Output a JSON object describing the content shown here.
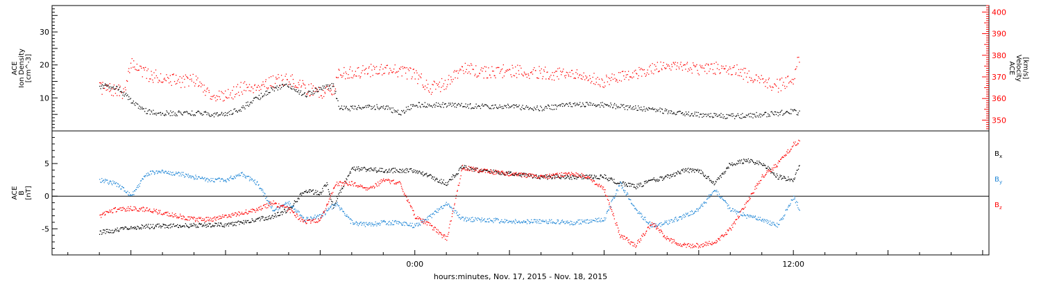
{
  "chart_data": [
    {
      "type": "scatter",
      "panel": "top",
      "ylabel_lines": [
        "ACE",
        "Ion Density",
        "[cm^-3]"
      ],
      "y2label_lines": [
        "ACE",
        "Velocity",
        "[km/s]"
      ],
      "ylim": [
        0,
        38
      ],
      "y2lim": [
        345,
        403
      ],
      "yticks": [
        10,
        20,
        30
      ],
      "y2ticks": [
        350,
        360,
        370,
        380,
        390,
        400
      ],
      "colors": {
        "density": "#000000",
        "velocity": "#ff0000"
      },
      "series": [
        {
          "name": "Ion Density",
          "axis": "left",
          "x": [
            -10.0,
            -9.8,
            -9.6,
            -9.4,
            -9.0,
            -8.5,
            -8.0,
            -7.0,
            -6.0,
            -5.5,
            -5.0,
            -4.5,
            -4.0,
            -3.5,
            -3.0,
            -2.6,
            -2.4,
            -2.0,
            -1.0,
            -0.5,
            0.0,
            1.0,
            2.0,
            3.0,
            4.0,
            5.0,
            6.0,
            7.0,
            8.0,
            9.0,
            10.0,
            11.0,
            12.0,
            12.2
          ],
          "y": [
            13,
            14,
            13.5,
            13,
            9,
            6,
            5.5,
            5.5,
            5,
            7,
            10,
            13,
            14,
            11,
            13,
            14,
            7,
            7,
            7.5,
            5.5,
            8,
            8,
            7.5,
            7.5,
            7,
            8,
            8,
            7,
            6,
            5,
            4.5,
            5,
            6,
            5.5
          ]
        },
        {
          "name": "Velocity",
          "axis": "right",
          "x": [
            -10.0,
            -9.6,
            -9.2,
            -9.0,
            -8.5,
            -8.0,
            -7.5,
            -7.0,
            -6.5,
            -6.0,
            -5.5,
            -5.0,
            -4.5,
            -4.0,
            -3.5,
            -3.0,
            -2.6,
            -2.4,
            -2.0,
            -1.0,
            -0.5,
            0.0,
            0.5,
            1.0,
            1.5,
            2.0,
            3.0,
            4.0,
            5.0,
            6.0,
            7.0,
            8.0,
            9.0,
            10.0,
            11.0,
            11.5,
            12.0,
            12.2
          ],
          "y": [
            365,
            364,
            363,
            377,
            371,
            370,
            368,
            369,
            362,
            361,
            365,
            366,
            368,
            369,
            365,
            363,
            364,
            372,
            372,
            374,
            373,
            371,
            365,
            367,
            375,
            372,
            373,
            372,
            371,
            368,
            372,
            376,
            374,
            374,
            368,
            366,
            370,
            381
          ]
        }
      ]
    },
    {
      "type": "scatter",
      "panel": "bottom",
      "ylabel_lines": [
        "ACE",
        "B",
        "[nT]"
      ],
      "ylim": [
        -9,
        10
      ],
      "yticks": [
        -5,
        0,
        5
      ],
      "zero_line": true,
      "xlim": [
        -11.5,
        18.2
      ],
      "xticks": [
        0,
        12
      ],
      "xtick_labels": [
        "0:00",
        "12:00"
      ],
      "xlabel": "hours:minutes, Nov. 17, 2015 - Nov. 18, 2015",
      "colors": {
        "Bx": "#000000",
        "By": "#1f86d6",
        "Bz": "#ff0000"
      },
      "series": [
        {
          "name": "Bx",
          "x": [
            -10.0,
            -9.5,
            -9.0,
            -8.5,
            -8.0,
            -7.0,
            -6.0,
            -5.5,
            -5.0,
            -4.5,
            -4.0,
            -3.5,
            -3.0,
            -2.8,
            -2.6,
            -2.5,
            -2.0,
            -1.0,
            0.0,
            0.5,
            1.0,
            1.5,
            2.0,
            3.0,
            4.0,
            5.0,
            6.0,
            6.5,
            7.0,
            7.5,
            8.0,
            8.5,
            9.0,
            9.5,
            10.0,
            10.5,
            11.0,
            11.5,
            12.0,
            12.2
          ],
          "y": [
            -5.5,
            -5.2,
            -4.8,
            -4.6,
            -4.5,
            -4.4,
            -4.3,
            -4.0,
            -3.5,
            -3.0,
            -2.0,
            1.0,
            0.5,
            2.0,
            -1.5,
            -0.5,
            4.3,
            4.0,
            4.0,
            3.0,
            2.0,
            4.5,
            4.0,
            3.5,
            3.0,
            3.0,
            3.0,
            2.0,
            1.5,
            2.5,
            3.0,
            4.0,
            4.0,
            2.0,
            5.0,
            5.5,
            5.0,
            3.0,
            2.5,
            5.0
          ]
        },
        {
          "name": "By",
          "x": [
            -10.0,
            -9.5,
            -9.2,
            -9.0,
            -8.5,
            -8.0,
            -7.5,
            -7.0,
            -6.5,
            -6.0,
            -5.5,
            -5.0,
            -4.5,
            -4.0,
            -3.5,
            -3.0,
            -2.5,
            -2.0,
            -1.5,
            -1.0,
            -0.5,
            0.0,
            0.5,
            1.0,
            1.5,
            2.0,
            3.0,
            4.0,
            5.0,
            6.0,
            6.5,
            7.0,
            7.5,
            8.0,
            8.5,
            9.0,
            9.5,
            10.0,
            10.5,
            11.0,
            11.5,
            12.0,
            12.2
          ],
          "y": [
            2.5,
            2.0,
            1.0,
            0.0,
            3.5,
            3.8,
            3.5,
            3.0,
            2.5,
            2.5,
            3.5,
            2.0,
            -2.0,
            -1.0,
            -3.5,
            -3.0,
            -1.0,
            -4.0,
            -4.3,
            -4.0,
            -4.0,
            -4.5,
            -3.0,
            -1.0,
            -3.5,
            -3.5,
            -3.8,
            -3.8,
            -4.0,
            -3.5,
            2.0,
            -2.0,
            -4.5,
            -4.0,
            -3.0,
            -2.0,
            1.0,
            -2.0,
            -3.0,
            -3.5,
            -4.5,
            0.0,
            -2.0
          ]
        },
        {
          "name": "Bz",
          "x": [
            -10.0,
            -9.5,
            -9.0,
            -8.5,
            -8.0,
            -7.5,
            -7.0,
            -6.5,
            -6.0,
            -5.5,
            -5.0,
            -4.5,
            -4.0,
            -3.5,
            -3.0,
            -2.5,
            -2.0,
            -1.5,
            -1.0,
            -0.5,
            0.0,
            0.5,
            1.0,
            1.5,
            2.0,
            3.0,
            4.0,
            5.0,
            5.5,
            6.0,
            6.5,
            7.0,
            7.5,
            8.0,
            8.5,
            9.0,
            9.5,
            10.0,
            10.5,
            11.0,
            11.5,
            12.0,
            12.2
          ],
          "y": [
            -3.0,
            -2.0,
            -1.8,
            -2.0,
            -2.5,
            -3.0,
            -3.5,
            -3.5,
            -3.0,
            -2.5,
            -2.0,
            -1.0,
            -2.0,
            -4.0,
            -3.5,
            2.0,
            2.0,
            1.0,
            2.5,
            2.0,
            -3.0,
            -4.5,
            -6.5,
            4.5,
            4.0,
            3.5,
            3.0,
            3.5,
            3.0,
            1.0,
            -6.0,
            -7.5,
            -4.0,
            -6.5,
            -7.5,
            -7.5,
            -7.0,
            -5.0,
            -1.0,
            3.0,
            5.0,
            8.0,
            8.5
          ]
        }
      ],
      "legend": [
        {
          "label": "B",
          "sub": "x",
          "color": "#000000"
        },
        {
          "label": "B",
          "sub": "y",
          "color": "#1f86d6"
        },
        {
          "label": "B",
          "sub": "z",
          "color": "#ff0000"
        }
      ]
    }
  ]
}
